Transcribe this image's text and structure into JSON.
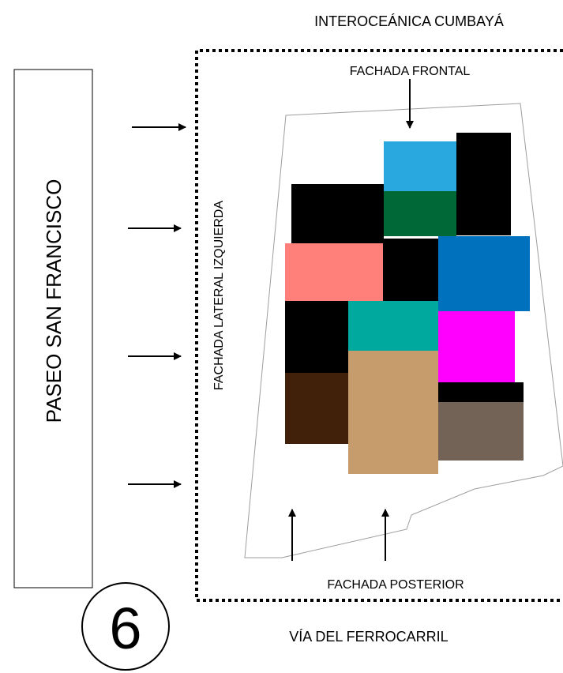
{
  "labels": {
    "top_street": "INTEROCEÁNICA CUMBAYÁ",
    "bottom_street": "VÍA DEL FERROCARRIL",
    "left_street": "PASEO SAN FRANCISCO",
    "front_facade": "FACHADA FRONTAL",
    "rear_facade": "FACHADA POSTERIOR",
    "left_facade": "FACHADA LATERAL IZQUIERDA",
    "number": "6"
  },
  "colors": {
    "outline": "#000000",
    "lot_outline": "#9e9e9e",
    "light_blue": "#29a8e0",
    "dark_green": "#006837",
    "black": "#000000",
    "salmon": "#ff7f7b",
    "blue": "#0071bc",
    "teal": "#00a99d",
    "magenta": "#ff00ff",
    "brown": "#42210b",
    "tan": "#c69c6d",
    "gray_brown": "#736357"
  }
}
